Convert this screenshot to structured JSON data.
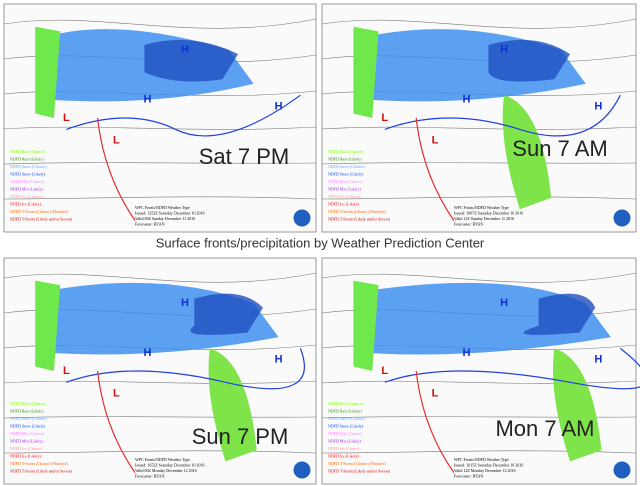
{
  "caption": "Surface fronts/precipitation by Weather Prediction Center",
  "legend": [
    "NDFD Rain (Chance)",
    "NDFD Rain (Likely)",
    "NDFD Snow (Chance)",
    "NDFD Snow (Likely)",
    "NDFD Mix (Chance)",
    "NDFD Mix (Likely)",
    "NDFD Ice (Chance)",
    "NDFD Ice (Likely)",
    "NDFD T-Storm (Chance) (Hatched)",
    "NDFD T-Storm (Likely and/or Severe)"
  ],
  "panels": [
    {
      "label": "Sat 7 PM",
      "info": [
        "WPC Fronts/NDFD Weather Type",
        "Issued: 1252Z Saturday December 10 2016",
        "Valid 00Z Sunday December 11 2016",
        "Forecaster: RYAN"
      ],
      "centers": [
        "H",
        "H",
        "L",
        "H",
        "L"
      ]
    },
    {
      "label": "Sun 7 AM",
      "info": [
        "WPC Fronts/NDFD Weather Type",
        "Issued: 1007Z Saturday December 10 2016",
        "Valid 12Z Sunday December 11 2016",
        "Forecaster: RYAN"
      ],
      "centers": [
        "H",
        "H",
        "L",
        "H",
        "L"
      ]
    },
    {
      "label": "Sun 7 PM",
      "info": [
        "WPC Fronts/NDFD Weather Type",
        "Issued: 1652Z Saturday December 10 2016",
        "Valid 00Z Monday December 12 2016",
        "Forecaster: RYAN"
      ],
      "centers": [
        "H",
        "H",
        "L",
        "H",
        "L"
      ]
    },
    {
      "label": "Mon 7 AM",
      "info": [
        "WPC Fronts/NDFD Weather Type",
        "Issued: 1015Z Saturday December 10 2016",
        "Valid 12Z Monday December 12 2016",
        "Forecaster: RYAN"
      ],
      "centers": [
        "H",
        "H",
        "L",
        "H",
        "L"
      ]
    }
  ]
}
